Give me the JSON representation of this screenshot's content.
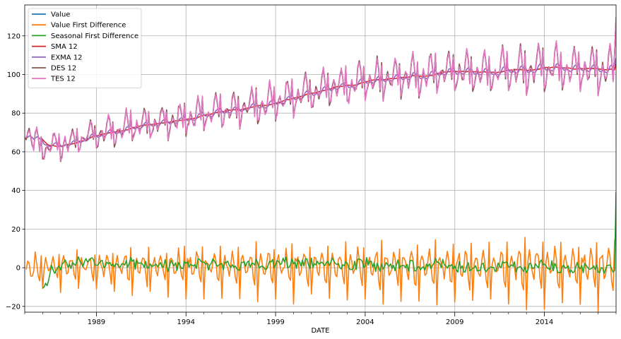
{
  "chart_data": {
    "type": "line",
    "title": "",
    "xlabel": "DATE",
    "ylabel": "",
    "xlim": [
      1985.0,
      2018.0
    ],
    "ylim": [
      -23,
      136
    ],
    "x_ticks": [
      1989,
      1994,
      1999,
      2004,
      2009,
      2014
    ],
    "x_tick_labels": [
      "1989",
      "1994",
      "1999",
      "2004",
      "2009",
      "2014"
    ],
    "y_ticks": [
      -20,
      0,
      20,
      40,
      60,
      80,
      100,
      120
    ],
    "y_tick_labels": [
      "−20",
      "0",
      "20",
      "40",
      "60",
      "80",
      "100",
      "120"
    ],
    "grid": true,
    "legend_position": "top-left",
    "series_model": {
      "x_start": 1985.0,
      "x_end": 2018.0,
      "trend_points": [
        [
          1985.0,
          73
        ],
        [
          1985.5,
          64
        ],
        [
          1986.0,
          62
        ],
        [
          1987.0,
          63
        ],
        [
          1988.0,
          66
        ],
        [
          1989.0,
          69
        ],
        [
          1990.0,
          71
        ],
        [
          1991.0,
          73
        ],
        [
          1992.0,
          74
        ],
        [
          1993.0,
          75
        ],
        [
          1994.0,
          77
        ],
        [
          1995.0,
          79
        ],
        [
          1996.0,
          81
        ],
        [
          1997.0,
          82
        ],
        [
          1998.0,
          84
        ],
        [
          1999.0,
          86
        ],
        [
          2000.0,
          88
        ],
        [
          2001.0,
          91
        ],
        [
          2002.0,
          93
        ],
        [
          2003.0,
          94
        ],
        [
          2004.0,
          96
        ],
        [
          2005.0,
          97
        ],
        [
          2006.0,
          98
        ],
        [
          2007.0,
          99
        ],
        [
          2008.0,
          101
        ],
        [
          2009.0,
          101
        ],
        [
          2010.0,
          100
        ],
        [
          2011.0,
          101
        ],
        [
          2012.0,
          101
        ],
        [
          2013.0,
          102
        ],
        [
          2014.0,
          103
        ],
        [
          2015.0,
          103
        ],
        [
          2016.0,
          103
        ],
        [
          2017.0,
          102
        ],
        [
          2018.0,
          103
        ]
      ],
      "seasonal_amplitude_start": 8,
      "seasonal_amplitude_end": 14,
      "last_value": 129
    },
    "series": [
      {
        "name": "Value",
        "color": "#1f77b4"
      },
      {
        "name": "Value First Difference",
        "color": "#ff7f0e"
      },
      {
        "name": "Seasonal First Difference",
        "color": "#2ca02c"
      },
      {
        "name": "SMA 12",
        "color": "#d62728"
      },
      {
        "name": "EXMA 12",
        "color": "#9467bd"
      },
      {
        "name": "DES 12",
        "color": "#8c564b"
      },
      {
        "name": "TES 12",
        "color": "#e377c2"
      }
    ]
  }
}
